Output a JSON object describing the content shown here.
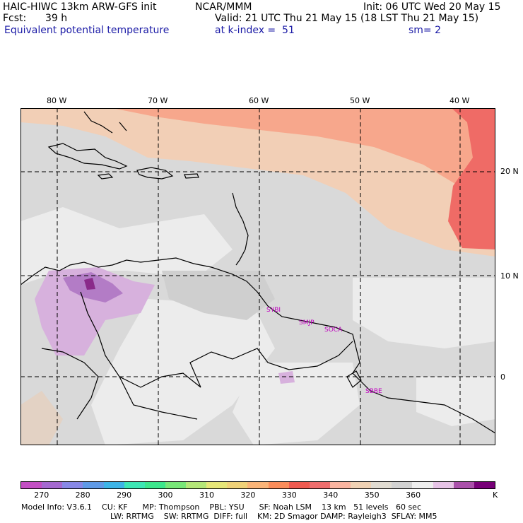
{
  "header": {
    "model": "HAIC-HIWC 13km ARW-GFS init",
    "org": "NCAR/MMM",
    "init": "Init: 06 UTC Wed 20 May 15",
    "fcst_label": "Fcst:",
    "fcst_value": "39 h",
    "valid": "Valid: 21 UTC Thu 21 May 15 (18 LST Thu 21 May 15)",
    "field": "Equivalent potential temperature",
    "level": "at k-index =  51",
    "smoothing": "sm= 2"
  },
  "map": {
    "lon_labels": [
      "80 W",
      "70 W",
      "60 W",
      "50 W",
      "40 W"
    ],
    "lat_labels": [
      "20 N",
      "10 N",
      "0"
    ],
    "stations": [
      "SYBI",
      "SMJP",
      "SOCA",
      "SBBE"
    ]
  },
  "colorbar": {
    "colors": [
      "#c34fc3",
      "#a569d0",
      "#8888e6",
      "#5f9ae6",
      "#3cb4e6",
      "#3ce6b4",
      "#3ce68c",
      "#78e678",
      "#b4e678",
      "#e6e678",
      "#f0d278",
      "#fab478",
      "#fa8c5a",
      "#f05a50",
      "#f06e6e",
      "#fab4a0",
      "#f0d2b4",
      "#e1dcd2",
      "#d2d2d2",
      "#eeeeee",
      "#e6c3e6",
      "#aa50aa",
      "#780078"
    ],
    "labels": [
      "270",
      "280",
      "290",
      "300",
      "310",
      "320",
      "330",
      "340",
      "350",
      "360"
    ],
    "unit": "K"
  },
  "footer": {
    "line1": "Model Info: V3.6.1    CU: KF      MP: Thompson    PBL: YSU      SF: Noah LSM    13 km   51 levels   60 sec",
    "line2": "LW: RRTMG    SW: RRTMG  DIFF: full    KM: 2D Smagor DAMP: Rayleigh3  SFLAY: MM5"
  }
}
